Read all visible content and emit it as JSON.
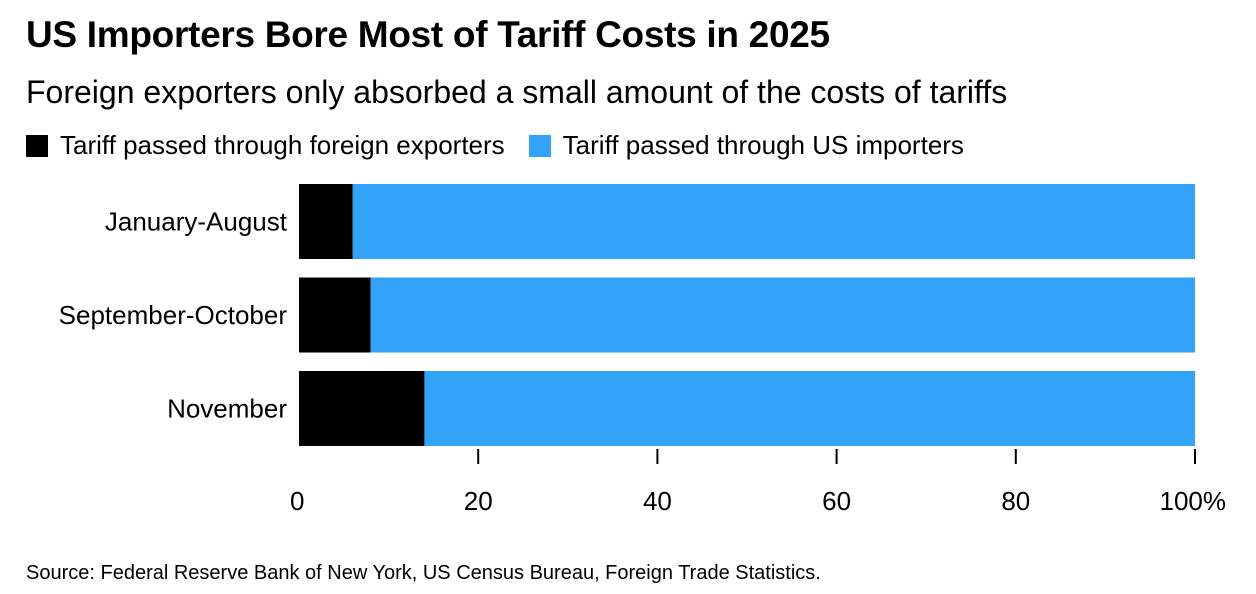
{
  "chart_data": {
    "type": "bar",
    "orientation": "horizontal",
    "stacked": true,
    "title": "US Importers Bore Most of Tariff Costs in 2025",
    "subtitle": "Foreign exporters only absorbed a small amount of the costs of tariffs",
    "categories": [
      "January-August",
      "September-October",
      "November"
    ],
    "series": [
      {
        "name": "Tariff passed through foreign exporters",
        "color": "#000000",
        "values": [
          6,
          8,
          14
        ]
      },
      {
        "name": "Tariff passed through US importers",
        "color": "#33a3fa",
        "values": [
          94,
          92,
          86
        ]
      }
    ],
    "xlim": [
      0,
      100
    ],
    "xticks": [
      0,
      20,
      40,
      60,
      80,
      100
    ],
    "xtick_labels": [
      "0",
      "20",
      "40",
      "60",
      "80",
      "100%"
    ],
    "legend_position": "top-left",
    "grid": false,
    "source": "Source: Federal Reserve Bank of New York, US Census Bureau, Foreign Trade Statistics."
  }
}
